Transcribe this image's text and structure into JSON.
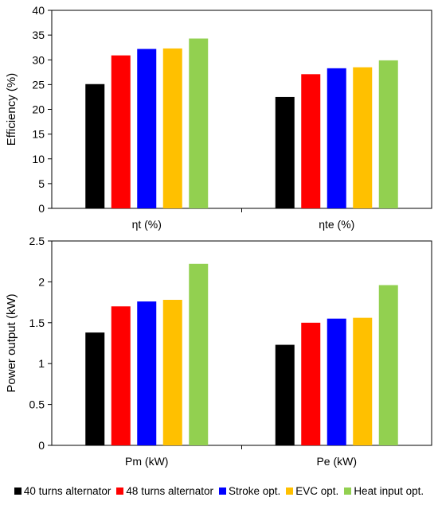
{
  "chart_data": [
    {
      "type": "bar",
      "ylabel": "Efficiency (%)",
      "ylim": [
        0,
        40
      ],
      "yticks": [
        0,
        5,
        10,
        15,
        20,
        25,
        30,
        35,
        40
      ],
      "grid": false,
      "legend": "bottom",
      "categories": [
        "ηt (%)",
        "ηte (%)"
      ],
      "series": [
        {
          "name": "40 turns alternator",
          "color": "#000000",
          "values": [
            25.1,
            22.5
          ]
        },
        {
          "name": "48 turns alternator",
          "color": "#ff0000",
          "values": [
            30.9,
            27.1
          ]
        },
        {
          "name": "Stroke opt.",
          "color": "#0000ff",
          "values": [
            32.2,
            28.3
          ]
        },
        {
          "name": "EVC opt.",
          "color": "#ffc000",
          "values": [
            32.3,
            28.5
          ]
        },
        {
          "name": "Heat input opt.",
          "color": "#92d050",
          "values": [
            34.3,
            29.9
          ]
        }
      ]
    },
    {
      "type": "bar",
      "ylabel": "Power output (kW)",
      "ylim": [
        0,
        2.5
      ],
      "yticks": [
        "0",
        "0.5",
        "1",
        "1.5",
        "2",
        "2.5"
      ],
      "grid": false,
      "legend": "bottom",
      "categories": [
        "Pm (kW)",
        "Pe (kW)"
      ],
      "series": [
        {
          "name": "40 turns alternator",
          "color": "#000000",
          "values": [
            1.38,
            1.23
          ]
        },
        {
          "name": "48 turns alternator",
          "color": "#ff0000",
          "values": [
            1.7,
            1.5
          ]
        },
        {
          "name": "Stroke opt.",
          "color": "#0000ff",
          "values": [
            1.76,
            1.55
          ]
        },
        {
          "name": "EVC opt.",
          "color": "#ffc000",
          "values": [
            1.78,
            1.56
          ]
        },
        {
          "name": "Heat input opt.",
          "color": "#92d050",
          "values": [
            2.22,
            1.96
          ]
        }
      ]
    }
  ],
  "legend": {
    "items": [
      {
        "label": "40 turns alternator",
        "color": "#000000"
      },
      {
        "label": "48 turns alternator",
        "color": "#ff0000"
      },
      {
        "label": "Stroke opt.",
        "color": "#0000ff"
      },
      {
        "label": "EVC opt.",
        "color": "#ffc000"
      },
      {
        "label": "Heat input opt.",
        "color": "#92d050"
      }
    ]
  }
}
